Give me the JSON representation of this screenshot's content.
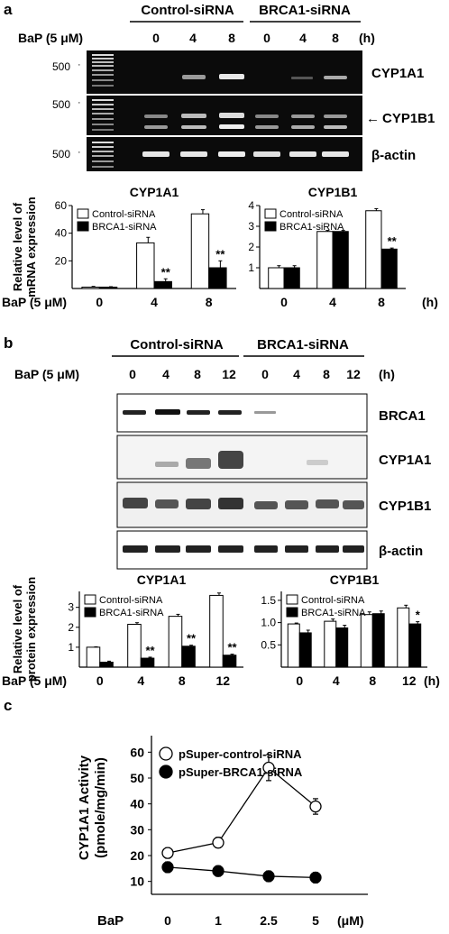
{
  "panel_a": {
    "letter": "a",
    "group_labels": [
      "Control-siRNA",
      "BRCA1-siRNA"
    ],
    "bap_label": "BaP (5 μM)",
    "time_labels": [
      "0",
      "4",
      "8",
      "0",
      "4",
      "8"
    ],
    "time_unit": "(h)",
    "marker_labels": [
      "500",
      "500",
      "500"
    ],
    "gel_labels": [
      "CYP1A1",
      "CYP1B1",
      "β-actin"
    ],
    "arrow": "←"
  },
  "panel_b": {
    "letter": "b",
    "group_labels": [
      "Control-siRNA",
      "BRCA1-siRNA"
    ],
    "bap_label": "BaP (5 μM)",
    "time_labels": [
      "0",
      "4",
      "8",
      "12",
      "0",
      "4",
      "8",
      "12"
    ],
    "time_unit": "(h)",
    "blot_labels": [
      "BRCA1",
      "CYP1A1",
      "CYP1B1",
      "β-actin"
    ]
  },
  "panel_c": {
    "letter": "c"
  },
  "chart_data": [
    {
      "id": "a_cyp1a1",
      "type": "bar",
      "title": "CYP1A1",
      "ylabel": "Relative level of mRNA expression",
      "xlabel": "BaP (5 μM)",
      "x_unit": "",
      "categories": [
        "0",
        "4",
        "8"
      ],
      "ylim": [
        0,
        60
      ],
      "yticks": [
        20,
        40,
        60
      ],
      "legend": "top-left",
      "series": [
        {
          "name": "Control-siRNA",
          "color": "#ffffff",
          "values": [
            1,
            33,
            54
          ],
          "errors": [
            0.5,
            4,
            3
          ]
        },
        {
          "name": "BRCA1-siRNA",
          "color": "#000000",
          "values": [
            1,
            5,
            15
          ],
          "errors": [
            0.3,
            2,
            5
          ]
        }
      ],
      "annotations": [
        {
          "category": "4",
          "text": "**"
        },
        {
          "category": "8",
          "text": "**"
        }
      ]
    },
    {
      "id": "a_cyp1b1",
      "type": "bar",
      "title": "CYP1B1",
      "ylabel": "",
      "xlabel": "",
      "x_unit": "(h)",
      "categories": [
        "0",
        "4",
        "8"
      ],
      "ylim": [
        0,
        4
      ],
      "yticks": [
        1,
        2,
        3,
        4
      ],
      "legend": "top-left",
      "series": [
        {
          "name": "Control-siRNA",
          "color": "#ffffff",
          "values": [
            1,
            2.75,
            3.75
          ],
          "errors": [
            0.1,
            0.05,
            0.1
          ]
        },
        {
          "name": "BRCA1-siRNA",
          "color": "#000000",
          "values": [
            1,
            2.75,
            1.9
          ],
          "errors": [
            0.1,
            0.05,
            0.05
          ]
        }
      ],
      "annotations": [
        {
          "category": "8",
          "text": "**"
        }
      ]
    },
    {
      "id": "b_cyp1a1",
      "type": "bar",
      "title": "CYP1A1",
      "ylabel": "Relative level of protein expression",
      "xlabel": "BaP (5 μM)",
      "x_unit": "",
      "categories": [
        "0",
        "4",
        "8",
        "12"
      ],
      "ylim": [
        0,
        3.8
      ],
      "yticks": [
        1,
        2,
        3
      ],
      "legend": "top-left",
      "series": [
        {
          "name": "Control-siRNA",
          "color": "#ffffff",
          "values": [
            1,
            2.15,
            2.55,
            3.6
          ],
          "errors": [
            0.02,
            0.08,
            0.1,
            0.12
          ]
        },
        {
          "name": "BRCA1-siRNA",
          "color": "#000000",
          "values": [
            0.25,
            0.45,
            1.05,
            0.6
          ],
          "errors": [
            0.05,
            0.05,
            0.05,
            0.05
          ]
        }
      ],
      "annotations": [
        {
          "category": "4",
          "text": "**"
        },
        {
          "category": "8",
          "text": "**"
        },
        {
          "category": "12",
          "text": "**"
        }
      ]
    },
    {
      "id": "b_cyp1b1",
      "type": "bar",
      "title": "CYP1B1",
      "ylabel": "",
      "xlabel": "",
      "x_unit": "(h)",
      "categories": [
        "0",
        "4",
        "8",
        "12"
      ],
      "ylim": [
        0,
        1.7
      ],
      "yticks": [
        0.5,
        1.0,
        1.5
      ],
      "ytick_labels": [
        "0.5",
        "1.0",
        "1.5"
      ],
      "legend": "top-left",
      "series": [
        {
          "name": "Control-siRNA",
          "color": "#ffffff",
          "values": [
            0.97,
            1.03,
            1.18,
            1.33
          ],
          "errors": [
            0.02,
            0.05,
            0.06,
            0.06
          ]
        },
        {
          "name": "BRCA1-siRNA",
          "color": "#000000",
          "values": [
            0.77,
            0.88,
            1.2,
            0.97
          ],
          "errors": [
            0.06,
            0.06,
            0.06,
            0.05
          ]
        }
      ],
      "annotations": [
        {
          "category": "12",
          "text": "*"
        }
      ]
    },
    {
      "id": "c_activity",
      "type": "line",
      "title": "",
      "ylabel": "CYP1A1 Activity (pmole/mg/min)",
      "xlabel": "BaP",
      "x_unit": "(μM)",
      "categories": [
        "0",
        "1",
        "2.5",
        "5"
      ],
      "ylim": [
        5,
        65
      ],
      "yticks": [
        10,
        20,
        30,
        40,
        50,
        60
      ],
      "legend": "top-left",
      "series": [
        {
          "name": "pSuper-control-siRNA",
          "marker": "open-circle",
          "values": [
            21,
            25,
            54,
            39
          ],
          "errors": [
            2,
            2,
            5,
            3
          ]
        },
        {
          "name": "pSuper-BRCA1-siRNA",
          "marker": "filled-circle",
          "values": [
            15.5,
            14,
            12,
            11.5
          ],
          "errors": [
            2,
            2,
            2,
            2
          ]
        }
      ]
    }
  ]
}
